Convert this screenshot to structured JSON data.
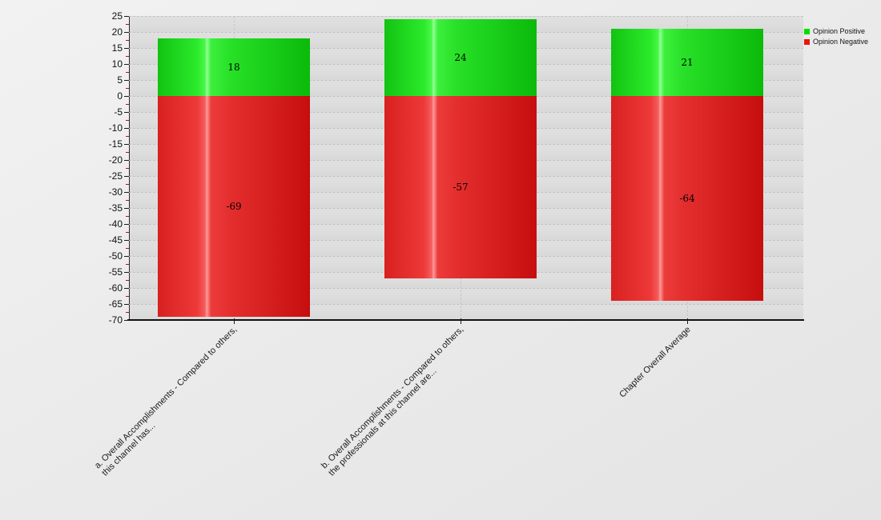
{
  "page": {
    "background_color": "#ebebeb",
    "plot_background_color": "#dcdcdc",
    "title": ""
  },
  "legend": {
    "position": "top-right",
    "items": [
      {
        "label": "Opinion Positive",
        "color": "#00dd00"
      },
      {
        "label": "Opinion Negative",
        "color": "#ee1111"
      }
    ]
  },
  "axis": {
    "y_tick_labels": [
      "25",
      "20",
      "15",
      "10",
      "5",
      "0",
      "-5",
      "-10",
      "-15",
      "-20",
      "-25",
      "-30",
      "-35",
      "-40",
      "-45",
      "-50",
      "-55",
      "-60",
      "-65",
      "-70"
    ],
    "y_minor_tick_color": "#e00000",
    "y_major_tick_color": "#1a1a1a"
  },
  "chart_data": {
    "type": "bar",
    "stacked": true,
    "title": "",
    "xlabel": "",
    "ylabel": "",
    "categories": [
      "a. Overall Accomplishments - Compared to others,\nthis channel has...",
      "b. Overall Accomplishments - Compared to others,\nthe professionals at this channel are...",
      "Chapter Overall Average"
    ],
    "series": [
      {
        "name": "Opinion Positive",
        "color": "#00cc00",
        "values": [
          18,
          24,
          21
        ]
      },
      {
        "name": "Opinion Negative",
        "color": "#dd1414",
        "values": [
          -69,
          -57,
          -64
        ]
      }
    ],
    "value_labels_shown": true,
    "ylim": [
      -70,
      25
    ],
    "y_tick_step": 5,
    "y_minor_tick_step": 2.5,
    "grid": true,
    "gridline_style": "dashed",
    "legend_position": "top-right"
  }
}
